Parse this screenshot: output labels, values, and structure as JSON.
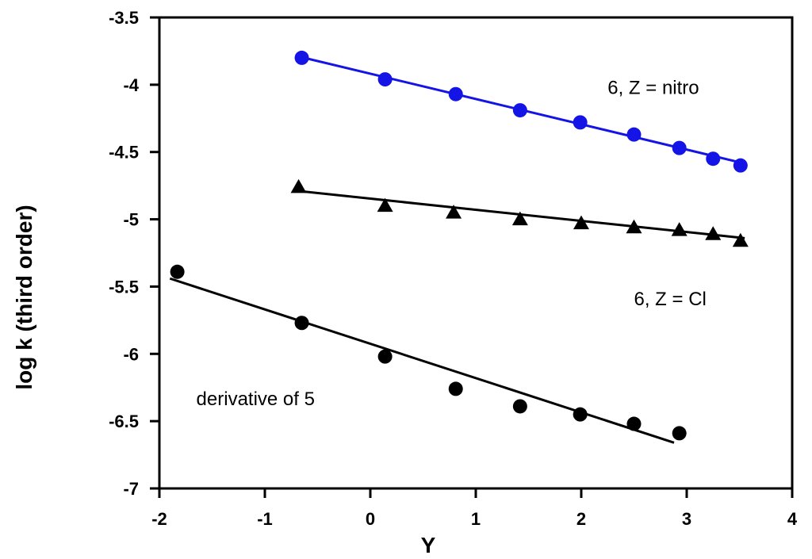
{
  "chart_data": {
    "type": "scatter",
    "title": "",
    "xlabel": "Y",
    "ylabel": "log k (third order)",
    "xlim": [
      -2,
      4
    ],
    "ylim": [
      -7,
      -3.5
    ],
    "xticks": [
      -2,
      -1,
      0,
      1,
      2,
      3,
      4
    ],
    "yticks": [
      -3.5,
      -4,
      -4.5,
      -5,
      -5.5,
      -6,
      -6.5,
      -7
    ],
    "xtick_labels": [
      "-2",
      "-1",
      "0",
      "1",
      "2",
      "3",
      "4"
    ],
    "ytick_labels": [
      "-3.5",
      "-4",
      "-4.5",
      "-5",
      "-5.5",
      "-6",
      "-6.5",
      "-7"
    ],
    "grid": false,
    "series": [
      {
        "name": "6, Z = nitro",
        "marker": "circle",
        "color": "#1414e6",
        "x": [
          -0.65,
          0.14,
          0.81,
          1.42,
          1.99,
          2.5,
          2.93,
          3.25,
          3.51
        ],
        "y": [
          -3.8,
          -3.96,
          -4.07,
          -4.19,
          -4.28,
          -4.37,
          -4.47,
          -4.55,
          -4.6
        ],
        "fit": {
          "x": [
            -0.68,
            3.52
          ],
          "y": [
            -3.79,
            -4.58
          ]
        }
      },
      {
        "name": "6, Z = Cl",
        "marker": "triangle",
        "color": "#000000",
        "x": [
          -0.68,
          0.14,
          0.79,
          1.42,
          2.0,
          2.5,
          2.93,
          3.25,
          3.51
        ],
        "y": [
          -4.76,
          -4.9,
          -4.95,
          -5.0,
          -5.03,
          -5.06,
          -5.08,
          -5.11,
          -5.16
        ],
        "fit": {
          "x": [
            -0.68,
            3.55
          ],
          "y": [
            -4.79,
            -5.14
          ]
        }
      },
      {
        "name": "derivative of 5",
        "marker": "circle",
        "color": "#000000",
        "x": [
          -1.83,
          -0.65,
          0.14,
          0.81,
          1.42,
          1.99,
          2.5,
          2.93
        ],
        "y": [
          -5.39,
          -5.77,
          -6.02,
          -6.26,
          -6.39,
          -6.45,
          -6.52,
          -6.59
        ],
        "fit": {
          "x": [
            -1.9,
            2.88
          ],
          "y": [
            -5.44,
            -6.66
          ]
        }
      }
    ],
    "annotations": [
      {
        "text": "6, Z = nitro",
        "x": 2.25,
        "y": -4.07
      },
      {
        "text": "6, Z = Cl",
        "x": 2.5,
        "y": -5.64
      },
      {
        "text": "derivative of 5",
        "x": -1.65,
        "y": -6.38
      }
    ]
  }
}
